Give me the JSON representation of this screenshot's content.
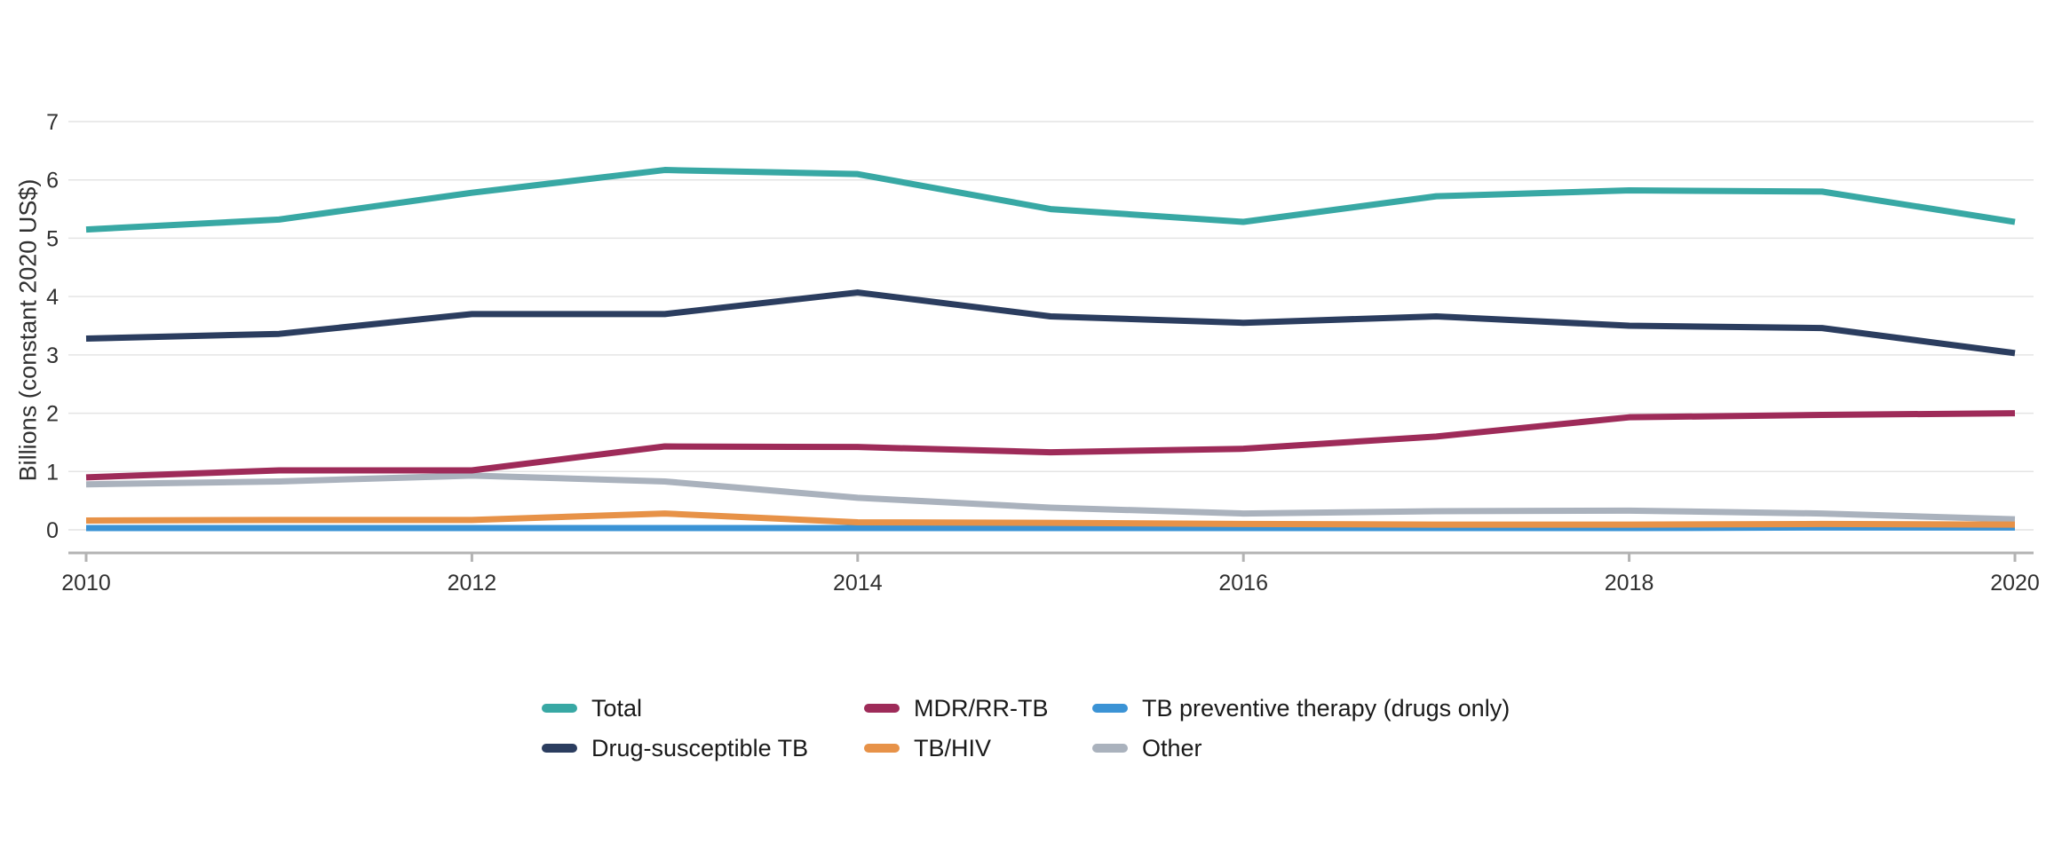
{
  "chart_data": {
    "type": "line",
    "title": "",
    "ylabel": "Billions (constant 2020 US$)",
    "xlabel": "",
    "x": [
      2010,
      2011,
      2012,
      2013,
      2014,
      2015,
      2016,
      2017,
      2018,
      2019,
      2020
    ],
    "series": [
      {
        "name": "Total",
        "color": "#38a8a4",
        "values": [
          5.15,
          5.32,
          5.78,
          6.17,
          6.1,
          5.5,
          5.28,
          5.72,
          5.82,
          5.8,
          5.28
        ]
      },
      {
        "name": "Drug-susceptible TB",
        "color": "#2b3d5f",
        "values": [
          3.28,
          3.36,
          3.7,
          3.7,
          4.07,
          3.66,
          3.55,
          3.66,
          3.5,
          3.46,
          3.03
        ]
      },
      {
        "name": "MDR/RR-TB",
        "color": "#9e2b59",
        "values": [
          0.9,
          1.02,
          1.02,
          1.43,
          1.42,
          1.33,
          1.39,
          1.6,
          1.93,
          1.97,
          2.0
        ]
      },
      {
        "name": "TB/HIV",
        "color": "#e79248",
        "values": [
          0.16,
          0.17,
          0.17,
          0.28,
          0.13,
          0.12,
          0.1,
          0.09,
          0.09,
          0.1,
          0.09
        ]
      },
      {
        "name": "TB preventive therapy (drugs only)",
        "color": "#3b93d5",
        "values": [
          0.03,
          0.03,
          0.03,
          0.03,
          0.03,
          0.03,
          0.03,
          0.03,
          0.03,
          0.04,
          0.04
        ]
      },
      {
        "name": "Other",
        "color": "#aab2bd",
        "values": [
          0.78,
          0.83,
          0.93,
          0.83,
          0.55,
          0.38,
          0.28,
          0.32,
          0.33,
          0.28,
          0.18
        ]
      }
    ],
    "ylim": [
      0,
      7
    ],
    "yticks": [
      0,
      1,
      2,
      3,
      4,
      5,
      6,
      7
    ],
    "xticks": [
      2010,
      2012,
      2014,
      2016,
      2018,
      2020
    ],
    "grid": "horizontal",
    "legend_position": "bottom"
  }
}
